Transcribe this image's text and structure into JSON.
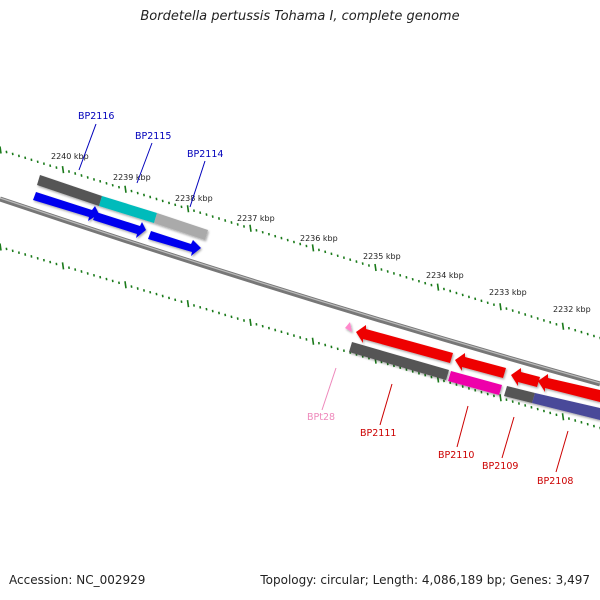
{
  "title": "Bordetella pertussis Tohama I, complete genome",
  "footer": {
    "accession": "Accession: NC_002929",
    "summary": "Topology: circular; Length: 4,086,189 bp; Genes: 3,497"
  },
  "colors": {
    "tick": "#1a7a1a",
    "backbone": "#777777",
    "plus_label": "#0000bb",
    "minus_label": "#cc0000",
    "pseudo_label": "#ee88bb",
    "cds_plus": "#0000ee",
    "cds_minus": "#ee0000",
    "gene_gray": "#555555",
    "gene_cyan": "#00bbbb",
    "gene_lightgray": "#aaaaaa",
    "gene_magenta": "#ee00aa",
    "gene_purple": "#4a4a99",
    "gene_pink": "#ff88cc"
  },
  "scale_labels": [
    "2240 kbp",
    "2239 kbp",
    "2238 kbp",
    "2237 kbp",
    "2236 kbp",
    "2235 kbp",
    "2234 kbp",
    "2233 kbp",
    "2232 kbp"
  ],
  "gene_labels": {
    "plus": [
      "BP2116",
      "BP2115",
      "BP2114"
    ],
    "minus": [
      "BP2111",
      "BP2110",
      "BP2109",
      "BP2108"
    ],
    "pseudo": [
      "BPt28"
    ]
  },
  "genes": [
    {
      "name": "BP2116",
      "strand": "+",
      "color": "gene_gray",
      "arrow_color": "cds_plus"
    },
    {
      "name": "BP2115",
      "strand": "+",
      "color": "gene_cyan",
      "arrow_color": "cds_plus"
    },
    {
      "name": "BP2114",
      "strand": "+",
      "color": "gene_lightgray",
      "arrow_color": "cds_plus"
    },
    {
      "name": "BPt28",
      "strand": "-",
      "color": "gene_pink"
    },
    {
      "name": "BP2111",
      "strand": "-",
      "color": "gene_gray",
      "arrow_color": "cds_minus"
    },
    {
      "name": "BP2110",
      "strand": "-",
      "color": "gene_magenta",
      "arrow_color": "cds_minus"
    },
    {
      "name": "BP2109",
      "strand": "-",
      "color": "gene_gray",
      "arrow_color": "cds_minus"
    },
    {
      "name": "BP2108",
      "strand": "-",
      "color": "gene_purple",
      "arrow_color": "cds_minus"
    }
  ]
}
